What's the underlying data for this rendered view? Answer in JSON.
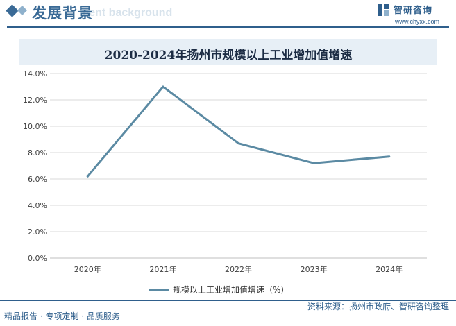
{
  "header": {
    "title": "发展背景",
    "title_en": "ment background",
    "logo_name": "智研咨询",
    "logo_url": "www.chyxx.com"
  },
  "colors": {
    "accent": "#2f5f8c",
    "series_line": "#5b8aa3",
    "title_band": "#e7eff6",
    "grid": "#d9d9d9"
  },
  "chart_data": {
    "type": "line",
    "title": "2020-2024年扬州市规模以上工业增加值增速",
    "categories": [
      "2020年",
      "2021年",
      "2022年",
      "2023年",
      "2024年"
    ],
    "series": [
      {
        "name": "规模以上工业增加值增速（%）",
        "values": [
          6.2,
          13.0,
          8.7,
          7.2,
          7.7
        ]
      }
    ],
    "y_ticks": [
      "0.0%",
      "2.0%",
      "4.0%",
      "6.0%",
      "8.0%",
      "10.0%",
      "12.0%",
      "14.0%"
    ],
    "ylim": [
      0,
      14
    ],
    "grid": true,
    "legend": "bottom-center"
  },
  "footer": {
    "left": "精品报告 · 专项定制 · 品质服务",
    "right": "资料来源：扬州市政府、智研咨询整理"
  }
}
